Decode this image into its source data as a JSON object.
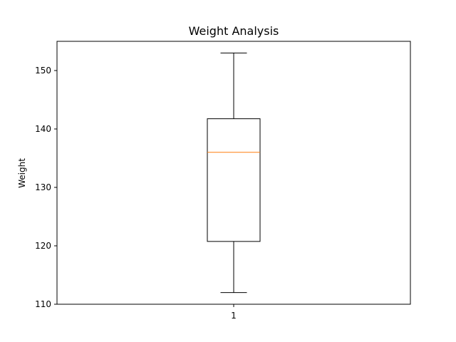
{
  "chart_data": {
    "type": "box",
    "title": "Weight Analysis",
    "xlabel": "",
    "ylabel": "Weight",
    "ylim": [
      110,
      155
    ],
    "yticks": [
      110,
      120,
      130,
      140,
      150
    ],
    "categories": [
      "1"
    ],
    "boxes": [
      {
        "category": "1",
        "whisker_low": 112,
        "q1": 120.75,
        "median": 136,
        "q3": 141.75,
        "whisker_high": 153
      }
    ],
    "grid": false,
    "colors": {
      "median": "#ff7f0e",
      "box": "#000000"
    }
  }
}
